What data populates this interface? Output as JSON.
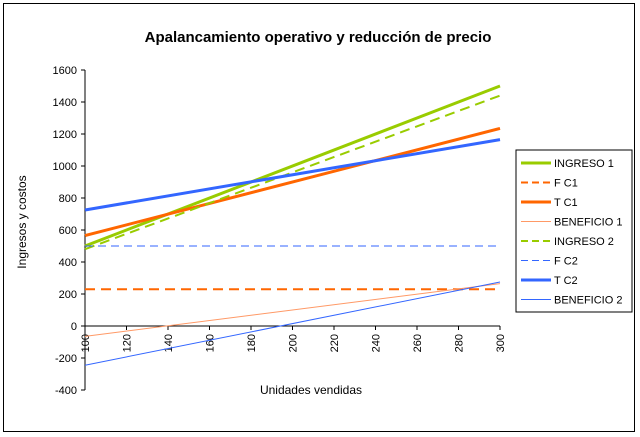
{
  "chart_data": {
    "type": "line",
    "title": "Apalancamiento operativo y reducción de precio",
    "xlabel": "Unidades vendidas",
    "ylabel": "Ingresos y costos",
    "xlim": [
      100,
      300
    ],
    "ylim": [
      -400,
      1600
    ],
    "xticks": [
      100,
      120,
      140,
      160,
      180,
      200,
      220,
      240,
      260,
      280,
      300
    ],
    "yticks": [
      -400,
      -200,
      0,
      200,
      400,
      600,
      800,
      1000,
      1200,
      1400,
      1600
    ],
    "ytick_labels": [
      "-400",
      "-200",
      "0",
      "200",
      "400",
      "600",
      "800",
      "1000",
      "1200",
      "1400",
      "1600"
    ],
    "grid": false,
    "legend_position": "right",
    "series": [
      {
        "name": "INGRESO 1",
        "color": "#99cc00",
        "dash": "solid",
        "width": 3,
        "x": [
          100,
          300
        ],
        "y": [
          500,
          1500
        ]
      },
      {
        "name": "FC1",
        "color": "#ff6600",
        "dash": "dashed",
        "width": 2,
        "x": [
          100,
          300
        ],
        "y": [
          230,
          230
        ]
      },
      {
        "name": "TC1",
        "color": "#ff6600",
        "dash": "solid",
        "width": 3,
        "x": [
          100,
          300
        ],
        "y": [
          565,
          1235
        ]
      },
      {
        "name": "BENEFICIO 1",
        "color": "#ff9966",
        "dash": "solid",
        "width": 1,
        "x": [
          100,
          300
        ],
        "y": [
          -65,
          265
        ]
      },
      {
        "name": "INGRESO 2",
        "color": "#99cc00",
        "dash": "dashed",
        "width": 2,
        "x": [
          100,
          300
        ],
        "y": [
          480,
          1440
        ]
      },
      {
        "name": "FC2",
        "color": "#3366ff",
        "dash": "dashed",
        "width": 1,
        "x": [
          100,
          300
        ],
        "y": [
          500,
          500
        ]
      },
      {
        "name": "TC2",
        "color": "#3366ff",
        "dash": "solid",
        "width": 3,
        "x": [
          100,
          300
        ],
        "y": [
          725,
          1165
        ]
      },
      {
        "name": "BENEFICIO 2",
        "color": "#3366ff",
        "dash": "solid",
        "width": 1,
        "x": [
          100,
          300
        ],
        "y": [
          -245,
          275
        ]
      }
    ],
    "legend_labels": [
      "INGRESO 1",
      "F C1",
      "T C1",
      "BENEFICIO 1",
      "INGRESO 2",
      "F C2",
      "T C2",
      "BENEFICIO 2"
    ]
  }
}
